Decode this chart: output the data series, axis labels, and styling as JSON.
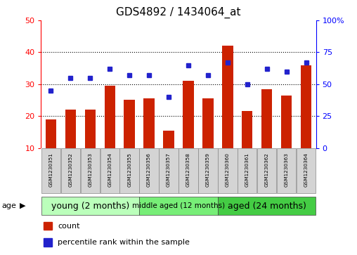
{
  "title": "GDS4892 / 1434064_at",
  "samples": [
    "GSM1230351",
    "GSM1230352",
    "GSM1230353",
    "GSM1230354",
    "GSM1230355",
    "GSM1230356",
    "GSM1230357",
    "GSM1230358",
    "GSM1230359",
    "GSM1230360",
    "GSM1230361",
    "GSM1230362",
    "GSM1230363",
    "GSM1230364"
  ],
  "counts": [
    19,
    22,
    22,
    29.5,
    25,
    25.5,
    15.5,
    31,
    25.5,
    42,
    21.5,
    28.5,
    26.5,
    36
  ],
  "percentiles": [
    45,
    55,
    55,
    62,
    57,
    57,
    40,
    65,
    57,
    67,
    50,
    62,
    60,
    67
  ],
  "ylim_left": [
    10,
    50
  ],
  "ylim_right": [
    0,
    100
  ],
  "yticks_left": [
    10,
    20,
    30,
    40,
    50
  ],
  "yticks_right": [
    0,
    25,
    50,
    75,
    100
  ],
  "ytick_labels_right": [
    "0",
    "25",
    "50",
    "75",
    "100%"
  ],
  "bar_color": "#cc2200",
  "dot_color": "#2222cc",
  "groups": [
    {
      "label": "young (2 months)",
      "start": 0,
      "end": 5,
      "color": "#bbffbb"
    },
    {
      "label": "middle aged (12 months)",
      "start": 5,
      "end": 9,
      "color": "#77ee77"
    },
    {
      "label": "aged (24 months)",
      "start": 9,
      "end": 14,
      "color": "#44cc44"
    }
  ],
  "group_label_fontsize": 8,
  "tick_fontsize": 8,
  "title_fontsize": 11,
  "legend_items": [
    {
      "label": "count",
      "color": "#cc2200"
    },
    {
      "label": "percentile rank within the sample",
      "color": "#2222cc"
    }
  ],
  "age_label": "age"
}
